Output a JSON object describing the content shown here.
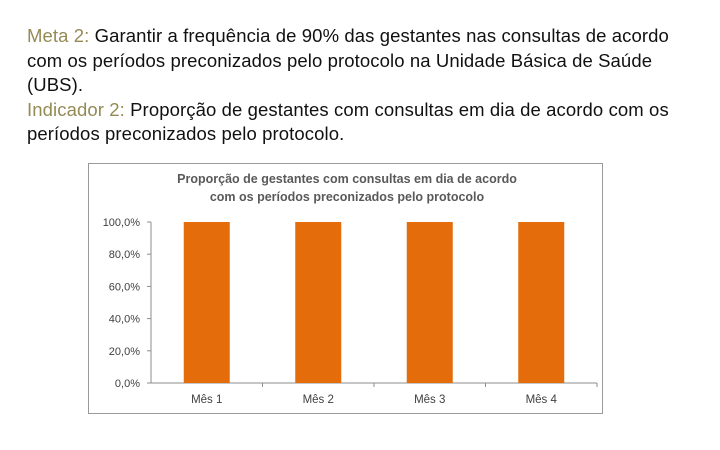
{
  "text": {
    "goal_label": "Meta 2:",
    "goal_text": " Garantir a frequência de 90% das gestantes nas consultas de acordo com os períodos preconizados pelo protocolo na Unidade Básica de Saúde (UBS).",
    "indicator_label": "Indicador 2:",
    "indicator_text": " Proporção de gestantes com consultas em dia de acordo com os períodos preconizados pelo protocolo."
  },
  "colors": {
    "label_olive": "#948a54",
    "bar_orange": "#e46c0a",
    "body_text": "#111111"
  },
  "chart_data": {
    "type": "bar",
    "title": "Proporção de gestantes com consultas em dia de acordo com os períodos preconizados pelo protocolo",
    "title_lines": [
      "Proporção de gestantes com consultas em dia de acordo",
      "com os períodos preconizados pelo protocolo"
    ],
    "categories": [
      "Mês 1",
      "Mês 2",
      "Mês 3",
      "Mês 4"
    ],
    "values": [
      100,
      100,
      100,
      100
    ],
    "ylim": [
      0,
      100
    ],
    "yticks": [
      0,
      20,
      40,
      60,
      80,
      100
    ],
    "ytick_labels": [
      "0,0%",
      "20,0%",
      "40,0%",
      "60,0%",
      "80,0%",
      "100,0%"
    ],
    "xlabel": "",
    "ylabel": "",
    "grid": false,
    "legend": "none",
    "bar_color": "#e46c0a"
  }
}
